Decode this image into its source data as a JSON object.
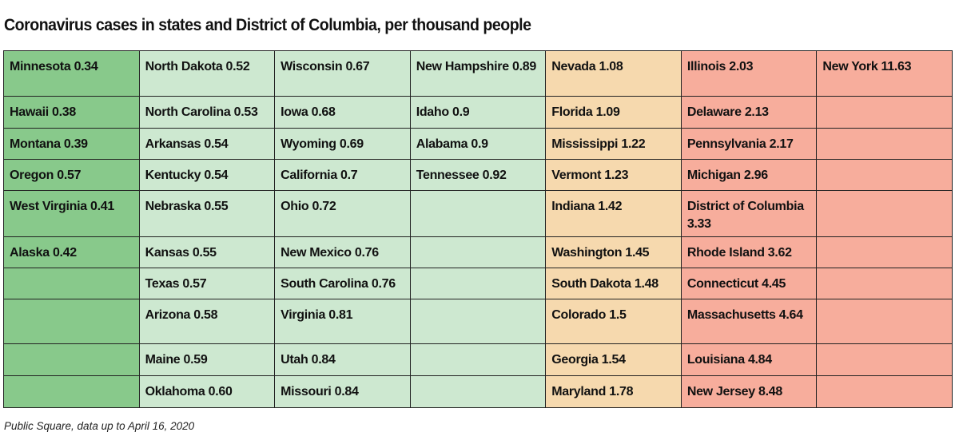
{
  "chart_data": {
    "type": "table",
    "title": "Coronavirus cases in states and District of Columbia, per thousand people",
    "source": "Public Square, data up to April 16, 2020",
    "colors": [
      "#88c98b",
      "#cde8d0",
      "#cde8d0",
      "#cde8d0",
      "#f6d9ae",
      "#f7ad9c",
      "#f7ad9c"
    ],
    "columns": [
      [
        [
          "Minnesota",
          0.34
        ],
        [
          "Hawaii",
          0.38
        ],
        [
          "Montana",
          0.39
        ],
        [
          "Oregon",
          0.57
        ],
        [
          "West Virginia",
          0.41
        ],
        [
          "Alaska",
          0.42
        ]
      ],
      [
        [
          "North Dakota",
          "0.52"
        ],
        [
          "North Carolina",
          "0.53"
        ],
        [
          "Arkansas",
          "0.54"
        ],
        [
          "Kentucky",
          "0.54"
        ],
        [
          "Nebraska",
          "0.55"
        ],
        [
          "Kansas",
          "0.55"
        ],
        [
          "Texas",
          "0.57"
        ],
        [
          "Arizona",
          "0.58"
        ],
        [
          "Maine",
          "0.59"
        ],
        [
          "Oklahoma",
          "0.60"
        ]
      ],
      [
        [
          "Wisconsin",
          "0.67"
        ],
        [
          "Iowa",
          "0.68"
        ],
        [
          "Wyoming",
          "0.69"
        ],
        [
          "California",
          "0.7"
        ],
        [
          "Ohio",
          "0.72"
        ],
        [
          "New Mexico",
          "0.76"
        ],
        [
          "South Carolina",
          "0.76"
        ],
        [
          "Virginia",
          "0.81"
        ],
        [
          "Utah",
          "0.84"
        ],
        [
          "Missouri",
          "0.84"
        ]
      ],
      [
        [
          "New Hampshire",
          "0.89"
        ],
        [
          "Idaho",
          "0.9"
        ],
        [
          "Alabama",
          "0.9"
        ],
        [
          "Tennessee",
          "0.92"
        ]
      ],
      [
        [
          "Nevada",
          "1.08"
        ],
        [
          "Florida",
          "1.09"
        ],
        [
          "Mississippi",
          "1.22"
        ],
        [
          "Vermont",
          "1.23"
        ],
        [
          "Indiana",
          "1.42"
        ],
        [
          "Washington",
          "1.45"
        ],
        [
          "South Dakota",
          "1.48"
        ],
        [
          "Colorado",
          "1.5"
        ],
        [
          "Georgia",
          "1.54"
        ],
        [
          "Maryland",
          "1.78"
        ]
      ],
      [
        [
          "Illinois",
          "2.03"
        ],
        [
          "Delaware",
          "2.13"
        ],
        [
          "Pennsylvania",
          "2.17"
        ],
        [
          "Michigan",
          "2.96"
        ],
        [
          "District of Columbia",
          "3.33"
        ],
        [
          "Rhode Island",
          "3.62"
        ],
        [
          "Connecticut",
          "4.45"
        ],
        [
          "Massachusetts",
          "4.64"
        ],
        [
          "Louisiana",
          "4.84"
        ],
        [
          "New Jersey",
          "8.48"
        ]
      ],
      [
        [
          "New York",
          "11.63"
        ]
      ]
    ]
  }
}
